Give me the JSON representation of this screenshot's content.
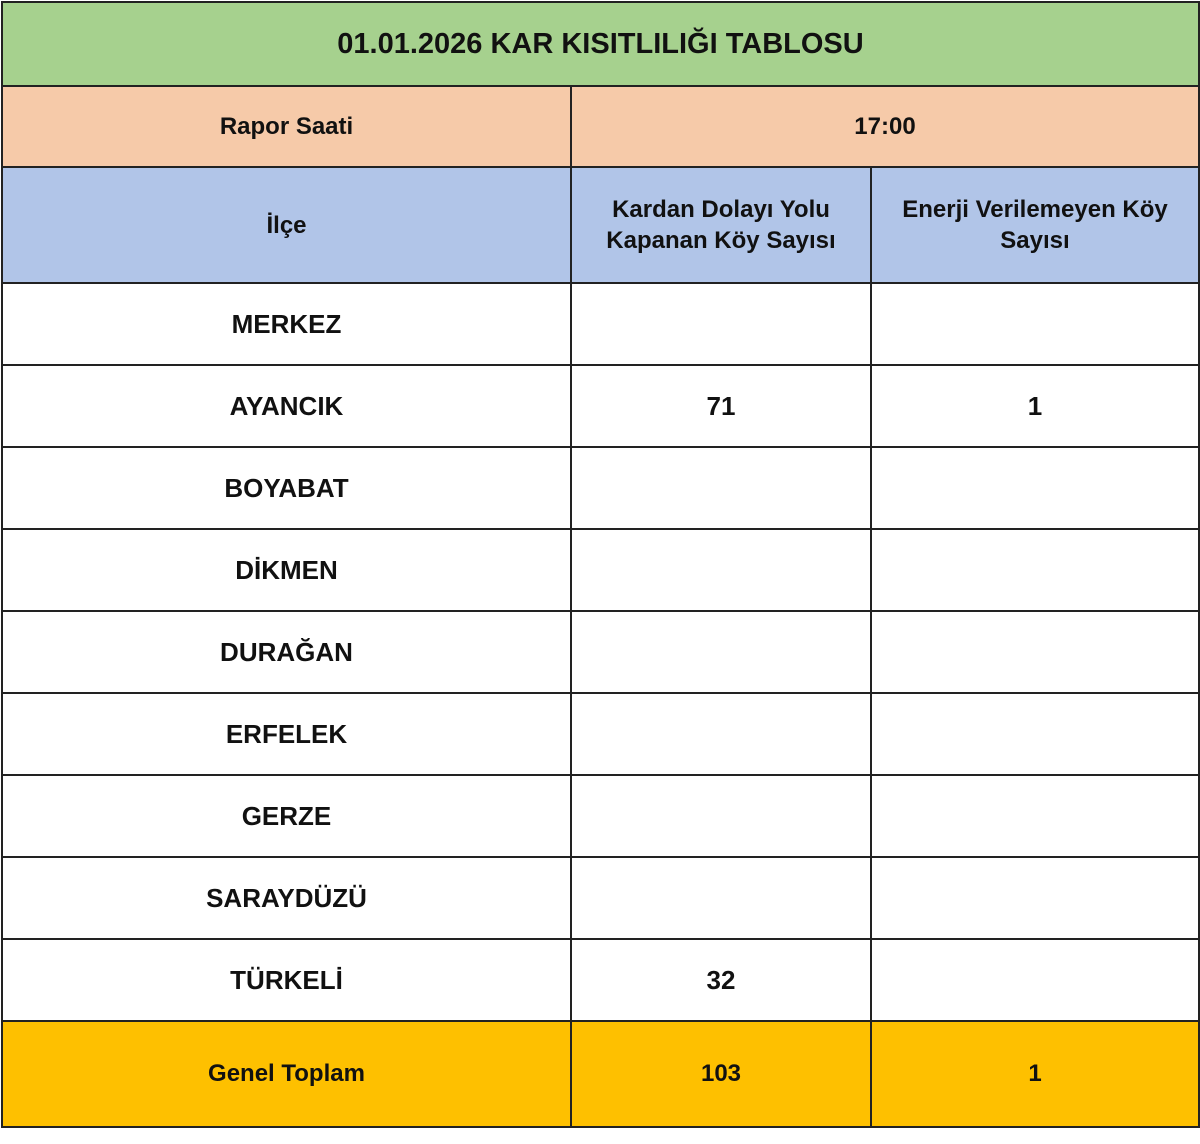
{
  "title": "01.01.2026 KAR KISITLILIĞI TABLOSU",
  "report": {
    "label": "Rapor Saati",
    "value": "17:00"
  },
  "columns": [
    "İlçe",
    "Kardan Dolayı Yolu Kapanan Köy Sayısı",
    "Enerji Verilemeyen Köy Sayısı"
  ],
  "rows": [
    {
      "district": "MERKEZ",
      "closed_roads": "",
      "no_power": ""
    },
    {
      "district": "AYANCIK",
      "closed_roads": "71",
      "no_power": "1"
    },
    {
      "district": "BOYABAT",
      "closed_roads": "",
      "no_power": ""
    },
    {
      "district": "DİKMEN",
      "closed_roads": "",
      "no_power": ""
    },
    {
      "district": "DURAĞAN",
      "closed_roads": "",
      "no_power": ""
    },
    {
      "district": "ERFELEK",
      "closed_roads": "",
      "no_power": ""
    },
    {
      "district": "GERZE",
      "closed_roads": "",
      "no_power": ""
    },
    {
      "district": "SARAYDÜZÜ",
      "closed_roads": "",
      "no_power": ""
    },
    {
      "district": "TÜRKELİ",
      "closed_roads": "32",
      "no_power": ""
    }
  ],
  "total": {
    "label": "Genel Toplam",
    "closed_roads": "103",
    "no_power": "1"
  },
  "colors": {
    "title_bg": "#a6d18e",
    "report_bg": "#f6caa9",
    "header_bg": "#b1c5e8",
    "total_bg": "#fec000"
  }
}
